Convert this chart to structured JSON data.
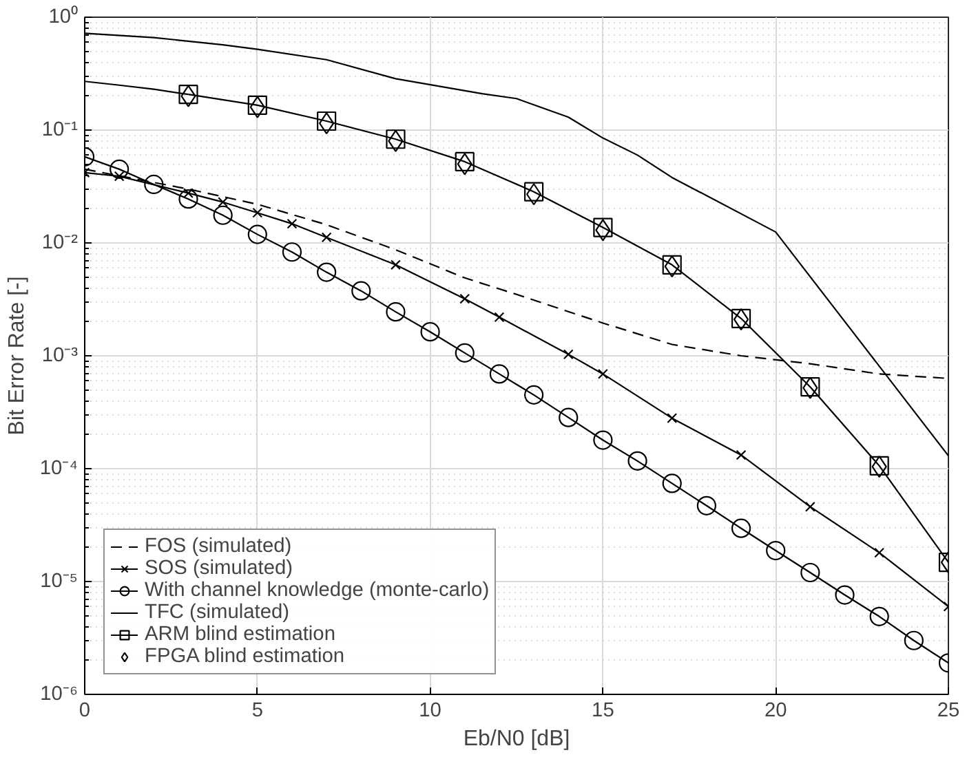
{
  "chart_data": {
    "type": "line",
    "xlabel": "Eb/N0 [dB]",
    "ylabel": "Bit Error Rate [-]",
    "log": "y",
    "grid": true,
    "legend": "bottom left",
    "xlim": [
      0,
      25
    ],
    "xticks": [
      0,
      5,
      10,
      15,
      20,
      25
    ],
    "ylim": [
      1e-06,
      1
    ],
    "yticks": [
      {
        "value": 1e-06,
        "label": "10⁻⁶"
      },
      {
        "value": 1e-05,
        "label": "10⁻⁵"
      },
      {
        "value": 0.0001,
        "label": "10⁻⁴"
      },
      {
        "value": 0.001,
        "label": "10⁻³"
      },
      {
        "value": 0.01,
        "label": "10⁻²"
      },
      {
        "value": 0.1,
        "label": "10⁻¹"
      },
      {
        "value": 1,
        "label": "10⁰"
      }
    ],
    "series": [
      {
        "name": "FOS (simulated)",
        "color": "#000000",
        "marker": "none",
        "line_style": "dashed",
        "x": [
          0,
          3,
          5,
          7,
          9,
          11,
          12.5,
          15,
          17,
          19,
          21,
          23,
          25
        ],
        "values": [
          0.045,
          0.03,
          0.022,
          0.0145,
          0.0087,
          0.0049,
          0.0035,
          0.00195,
          0.00126,
          0.001,
          0.00085,
          0.00069,
          0.00063
        ]
      },
      {
        "name": "SOS (simulated)",
        "color": "#000000",
        "marker": "cross",
        "line_style": "solid",
        "x": [
          0,
          1,
          3,
          4,
          5,
          6,
          7,
          9,
          11,
          12,
          14,
          15,
          17,
          19,
          21,
          23,
          25
        ],
        "values": [
          0.042,
          0.039,
          0.0276,
          0.023,
          0.0185,
          0.0148,
          0.0112,
          0.0064,
          0.0032,
          0.0022,
          0.00103,
          0.00069,
          0.00028,
          0.000132,
          4.6e-05,
          1.8e-05,
          6e-06
        ]
      },
      {
        "name": "With channel knowledge (monte-carlo)",
        "color": "#000000",
        "marker": "circle",
        "line_style": "solid",
        "x": [
          0,
          1,
          2,
          3,
          4,
          5,
          6,
          7,
          8,
          9,
          10,
          11,
          12,
          13,
          14,
          15,
          16,
          17,
          18,
          19,
          20,
          21,
          22,
          23,
          24,
          25
        ],
        "values": [
          0.058,
          0.045,
          0.033,
          0.0245,
          0.0176,
          0.0119,
          0.0083,
          0.0055,
          0.00376,
          0.00245,
          0.00163,
          0.00106,
          0.00069,
          0.00045,
          0.000284,
          0.000179,
          0.000117,
          7.4e-05,
          4.7e-05,
          2.96e-05,
          1.88e-05,
          1.2e-05,
          7.6e-06,
          4.9e-06,
          3e-06,
          1.9e-06
        ]
      },
      {
        "name": "TFC (simulated)",
        "color": "#000000",
        "marker": "none",
        "line_style": "solid",
        "x": [
          0,
          2,
          4,
          5,
          7,
          9,
          11.5,
          12.5,
          14,
          15,
          16,
          17,
          20,
          25
        ],
        "values": [
          0.72,
          0.66,
          0.57,
          0.52,
          0.42,
          0.285,
          0.21,
          0.19,
          0.13,
          0.085,
          0.06,
          0.038,
          0.0125,
          0.00013
        ]
      },
      {
        "name": "ARM blind estimation",
        "color": "#000000",
        "marker": "square",
        "line_style": "solid",
        "x": [
          3,
          5,
          7,
          9,
          11,
          13,
          15,
          17,
          19,
          21,
          23,
          25
        ],
        "values": [
          0.207,
          0.166,
          0.12,
          0.083,
          0.0525,
          0.0284,
          0.0137,
          0.0064,
          0.00214,
          0.00053,
          0.000106,
          1.48e-05
        ]
      },
      {
        "color": "#000000",
        "marker": "none",
        "line_style": "solid",
        "x": [
          0,
          1,
          2,
          3
        ],
        "values": [
          0.27,
          0.25,
          0.23,
          0.207
        ]
      },
      {
        "name": "FPGA blind estimation",
        "type": "scatter",
        "color": "#000000",
        "marker": "diamond",
        "x": [
          3,
          5,
          7,
          9,
          11,
          13,
          15,
          17,
          19,
          21,
          23,
          25
        ],
        "values": [
          0.2,
          0.16,
          0.115,
          0.08,
          0.05,
          0.027,
          0.013,
          0.0062,
          0.0021,
          0.00052,
          0.000104,
          1.48e-05
        ]
      }
    ]
  }
}
